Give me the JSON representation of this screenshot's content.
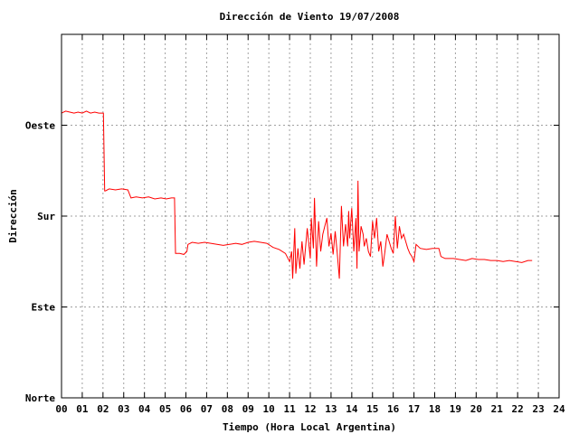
{
  "chart_data": {
    "type": "line",
    "title": "Dirección de Viento 19/07/2008",
    "xlabel": "Tiempo (Hora Local Argentina)",
    "ylabel": "Dirección",
    "xlim": [
      0,
      24
    ],
    "ylim": [
      0,
      360
    ],
    "x_ticks": [
      {
        "value": 0,
        "label": "00"
      },
      {
        "value": 1,
        "label": "01"
      },
      {
        "value": 2,
        "label": "02"
      },
      {
        "value": 3,
        "label": "03"
      },
      {
        "value": 4,
        "label": "04"
      },
      {
        "value": 5,
        "label": "05"
      },
      {
        "value": 6,
        "label": "06"
      },
      {
        "value": 7,
        "label": "07"
      },
      {
        "value": 8,
        "label": "08"
      },
      {
        "value": 9,
        "label": "09"
      },
      {
        "value": 10,
        "label": "10"
      },
      {
        "value": 11,
        "label": "11"
      },
      {
        "value": 12,
        "label": "12"
      },
      {
        "value": 13,
        "label": "13"
      },
      {
        "value": 14,
        "label": "14"
      },
      {
        "value": 15,
        "label": "15"
      },
      {
        "value": 16,
        "label": "16"
      },
      {
        "value": 17,
        "label": "17"
      },
      {
        "value": 18,
        "label": "18"
      },
      {
        "value": 19,
        "label": "19"
      },
      {
        "value": 20,
        "label": "20"
      },
      {
        "value": 21,
        "label": "21"
      },
      {
        "value": 22,
        "label": "22"
      },
      {
        "value": 23,
        "label": "23"
      },
      {
        "value": 24,
        "label": "24"
      }
    ],
    "y_ticks": [
      {
        "value": 0,
        "label": "Norte"
      },
      {
        "value": 90,
        "label": "Este"
      },
      {
        "value": 180,
        "label": "Sur"
      },
      {
        "value": 270,
        "label": "Oeste"
      }
    ],
    "grid": true,
    "line_color": "#ff0000",
    "series": [
      {
        "points": [
          [
            0.0,
            282
          ],
          [
            0.2,
            284
          ],
          [
            0.4,
            283
          ],
          [
            0.6,
            282
          ],
          [
            0.8,
            283
          ],
          [
            1.0,
            282
          ],
          [
            1.2,
            284
          ],
          [
            1.4,
            282
          ],
          [
            1.6,
            283
          ],
          [
            1.8,
            282
          ],
          [
            2.02,
            282
          ],
          [
            2.08,
            205
          ],
          [
            2.12,
            205
          ],
          [
            2.3,
            207
          ],
          [
            2.6,
            206
          ],
          [
            2.9,
            207
          ],
          [
            3.2,
            206
          ],
          [
            3.35,
            198
          ],
          [
            3.6,
            199
          ],
          [
            3.9,
            198
          ],
          [
            4.2,
            199
          ],
          [
            4.5,
            197
          ],
          [
            4.8,
            198
          ],
          [
            5.05,
            197
          ],
          [
            5.3,
            198
          ],
          [
            5.45,
            198
          ],
          [
            5.5,
            143
          ],
          [
            5.7,
            143
          ],
          [
            5.9,
            142
          ],
          [
            6.05,
            145
          ],
          [
            6.1,
            152
          ],
          [
            6.3,
            154
          ],
          [
            6.6,
            153
          ],
          [
            6.9,
            154
          ],
          [
            7.2,
            153
          ],
          [
            7.5,
            152
          ],
          [
            7.8,
            151
          ],
          [
            8.1,
            152
          ],
          [
            8.4,
            153
          ],
          [
            8.7,
            152
          ],
          [
            9.0,
            154
          ],
          [
            9.3,
            155
          ],
          [
            9.6,
            154
          ],
          [
            9.9,
            153
          ],
          [
            10.2,
            149
          ],
          [
            10.5,
            147
          ],
          [
            10.8,
            143
          ],
          [
            11.0,
            135
          ],
          [
            11.1,
            145
          ],
          [
            11.15,
            118
          ],
          [
            11.25,
            168
          ],
          [
            11.3,
            123
          ],
          [
            11.4,
            148
          ],
          [
            11.5,
            128
          ],
          [
            11.6,
            155
          ],
          [
            11.7,
            132
          ],
          [
            11.85,
            168
          ],
          [
            12.0,
            138
          ],
          [
            12.05,
            178
          ],
          [
            12.15,
            148
          ],
          [
            12.2,
            198
          ],
          [
            12.3,
            130
          ],
          [
            12.4,
            175
          ],
          [
            12.5,
            145
          ],
          [
            12.6,
            162
          ],
          [
            12.7,
            170
          ],
          [
            12.8,
            178
          ],
          [
            12.9,
            150
          ],
          [
            13.0,
            163
          ],
          [
            13.1,
            142
          ],
          [
            13.2,
            165
          ],
          [
            13.3,
            143
          ],
          [
            13.4,
            118
          ],
          [
            13.5,
            190
          ],
          [
            13.6,
            150
          ],
          [
            13.7,
            172
          ],
          [
            13.8,
            150
          ],
          [
            13.85,
            185
          ],
          [
            13.9,
            158
          ],
          [
            14.0,
            188
          ],
          [
            14.1,
            145
          ],
          [
            14.2,
            178
          ],
          [
            14.25,
            128
          ],
          [
            14.3,
            215
          ],
          [
            14.35,
            145
          ],
          [
            14.45,
            170
          ],
          [
            14.55,
            162
          ],
          [
            14.6,
            150
          ],
          [
            14.7,
            158
          ],
          [
            14.8,
            145
          ],
          [
            14.9,
            140
          ],
          [
            15.0,
            175
          ],
          [
            15.1,
            158
          ],
          [
            15.2,
            178
          ],
          [
            15.3,
            145
          ],
          [
            15.4,
            155
          ],
          [
            15.5,
            130
          ],
          [
            15.6,
            145
          ],
          [
            15.7,
            162
          ],
          [
            15.8,
            155
          ],
          [
            15.9,
            148
          ],
          [
            16.0,
            143
          ],
          [
            16.1,
            180
          ],
          [
            16.2,
            148
          ],
          [
            16.3,
            170
          ],
          [
            16.4,
            158
          ],
          [
            16.5,
            162
          ],
          [
            16.6,
            155
          ],
          [
            16.7,
            148
          ],
          [
            16.8,
            143
          ],
          [
            16.9,
            140
          ],
          [
            17.0,
            135
          ],
          [
            17.1,
            152
          ],
          [
            17.3,
            148
          ],
          [
            17.6,
            147
          ],
          [
            17.9,
            148
          ],
          [
            18.2,
            148
          ],
          [
            18.3,
            140
          ],
          [
            18.5,
            138
          ],
          [
            18.9,
            138
          ],
          [
            19.2,
            137
          ],
          [
            19.5,
            136
          ],
          [
            19.8,
            138
          ],
          [
            20.1,
            137
          ],
          [
            20.4,
            137
          ],
          [
            20.7,
            136
          ],
          [
            21.0,
            136
          ],
          [
            21.3,
            135
          ],
          [
            21.6,
            136
          ],
          [
            21.9,
            135
          ],
          [
            22.2,
            134
          ],
          [
            22.5,
            136
          ],
          [
            22.7,
            136
          ]
        ]
      }
    ]
  }
}
